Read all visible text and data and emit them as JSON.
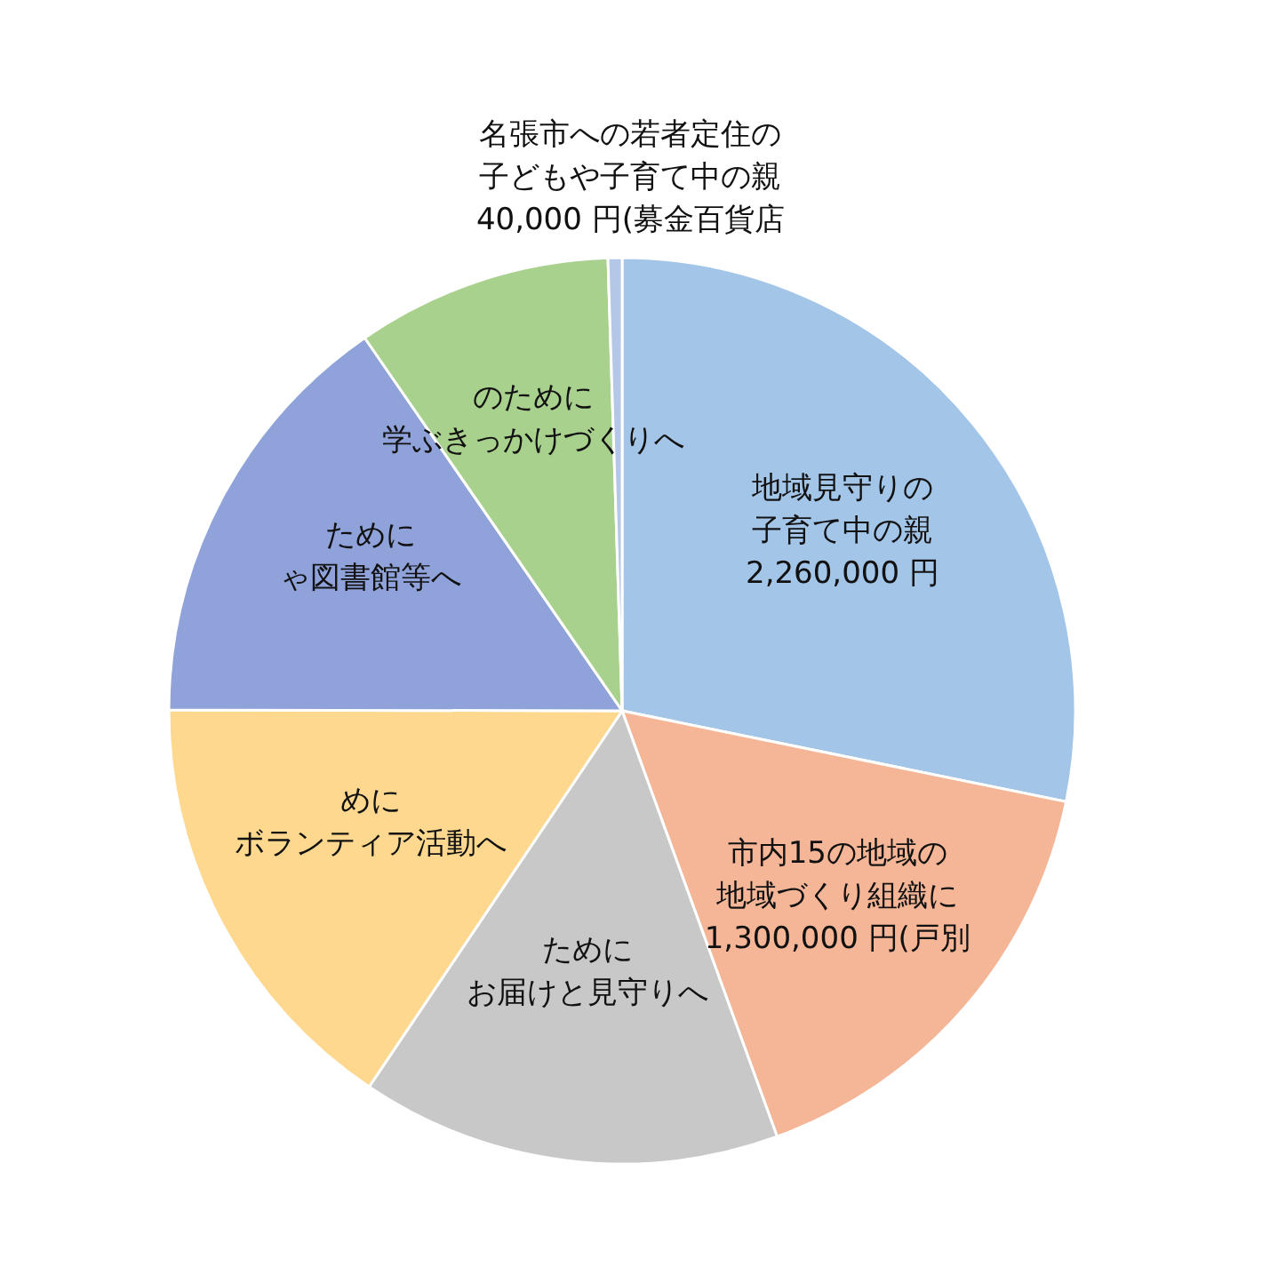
{
  "chart_data": {
    "type": "pie",
    "categories": [
      "地域見守りの",
      "市内15の地域の",
      "ために",
      "めに",
      "ために",
      "のために",
      "名張市への若者定住の"
    ],
    "values": [
      2260000,
      1300000,
      1200000,
      1250000,
      1230000,
      730000,
      40000
    ],
    "annotations": [
      "子育て中の親",
      "地域づくり組織に",
      "お届けと見守りへ",
      "ボランティア活動へ",
      "ゃ図書館等へ",
      "学ぶきっかけづくりへ",
      "子どもや子育て中の親"
    ],
    "value_labels": [
      "2,260,000 円",
      "1,300,000 円(戸別",
      null,
      null,
      null,
      null,
      "40,000 円(募金百貨店"
    ],
    "colors": [
      "#a3c5e8",
      "#f5b697",
      "#c8c8c8",
      "#fed88f",
      "#8fa2d9",
      "#a9d18e",
      "#b4c7e7"
    ]
  }
}
